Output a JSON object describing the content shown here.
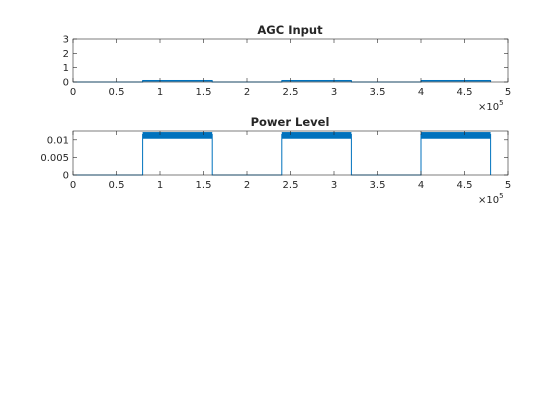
{
  "figure": {
    "background": "#ffffff",
    "axis_color": "#262626",
    "line_color": "#0072bd"
  },
  "chart_data": [
    {
      "type": "line",
      "title": "AGC Input",
      "xlabel": "",
      "ylabel": "",
      "xlim": [
        0,
        500000
      ],
      "ylim": [
        0,
        3
      ],
      "x_ticks": [
        0,
        50000,
        100000,
        150000,
        200000,
        250000,
        300000,
        350000,
        400000,
        450000,
        500000
      ],
      "x_tick_labels": [
        "0",
        "0.5",
        "1",
        "1.5",
        "2",
        "2.5",
        "3",
        "3.5",
        "4",
        "4.5",
        "5"
      ],
      "x_exponent_label": "×10",
      "x_exponent_power": "5",
      "y_ticks": [
        0,
        1,
        2,
        3
      ],
      "y_tick_labels": [
        "0",
        "1",
        "2",
        "3"
      ],
      "grid": false,
      "series": [
        {
          "x": [
            0,
            80000,
            80000,
            160000,
            160000,
            240000,
            240000,
            320000,
            320000,
            400000,
            400000,
            480000,
            480000
          ],
          "y": [
            0,
            0,
            0.1,
            0.1,
            0,
            0,
            0.1,
            0.1,
            0,
            0,
            0.1,
            0.1,
            0
          ],
          "band": [
            {
              "from": 80000,
              "to": 160000,
              "low": 0.06,
              "high": 0.14
            },
            {
              "from": 240000,
              "to": 320000,
              "low": 0.06,
              "high": 0.14
            },
            {
              "from": 400000,
              "to": 480000,
              "low": 0.06,
              "high": 0.14
            }
          ]
        }
      ]
    },
    {
      "type": "line",
      "title": "Power Level",
      "xlabel": "",
      "ylabel": "",
      "xlim": [
        0,
        500000
      ],
      "ylim": [
        0,
        0.0125
      ],
      "x_ticks": [
        0,
        50000,
        100000,
        150000,
        200000,
        250000,
        300000,
        350000,
        400000,
        450000,
        500000
      ],
      "x_tick_labels": [
        "0",
        "0.5",
        "1",
        "1.5",
        "2",
        "2.5",
        "3",
        "3.5",
        "4",
        "4.5",
        "5"
      ],
      "x_exponent_label": "×10",
      "x_exponent_power": "5",
      "y_ticks": [
        0,
        0.005,
        0.01
      ],
      "y_tick_labels": [
        "0",
        "0.005",
        "0.01"
      ],
      "grid": false,
      "series": [
        {
          "x": [
            0,
            80000,
            80000,
            160000,
            160000,
            240000,
            240000,
            320000,
            320000,
            400000,
            400000,
            480000,
            480000
          ],
          "y": [
            0,
            0,
            0.0115,
            0.0115,
            0,
            0,
            0.0115,
            0.0115,
            0,
            0,
            0.0115,
            0.0115,
            0
          ],
          "band": [
            {
              "from": 80000,
              "to": 160000,
              "low": 0.0103,
              "high": 0.0122
            },
            {
              "from": 240000,
              "to": 320000,
              "low": 0.0103,
              "high": 0.0122
            },
            {
              "from": 400000,
              "to": 480000,
              "low": 0.0103,
              "high": 0.0122
            }
          ]
        }
      ]
    }
  ]
}
